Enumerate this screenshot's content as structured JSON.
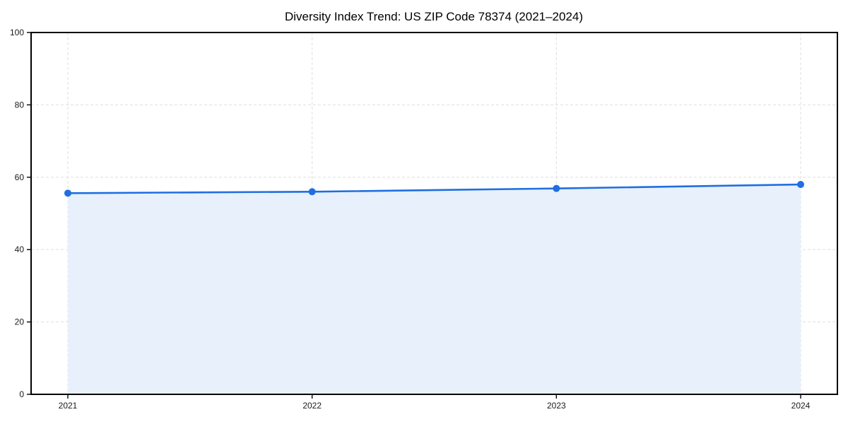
{
  "chart_data": {
    "type": "area",
    "title": "Diversity Index Trend: US ZIP Code 78374 (2021–2024)",
    "categories": [
      "2021",
      "2022",
      "2023",
      "2024"
    ],
    "x": [
      2021,
      2022,
      2023,
      2024
    ],
    "series": [
      {
        "name": "Diversity Index",
        "values": [
          55.6,
          56.0,
          56.9,
          58.0
        ]
      }
    ],
    "values": [
      55.6,
      56.0,
      56.9,
      58.0
    ],
    "xlabel": "",
    "ylabel": "",
    "ylim": [
      0,
      100
    ],
    "yticks": [
      0,
      20,
      40,
      60,
      80,
      100
    ],
    "grid": "dashed",
    "legend": "none",
    "colors": {
      "line": "#1f6fe0",
      "marker": "#1f6fe0",
      "fill": "#e8f0fc",
      "grid": "#e2e2e2",
      "axis": "#000000",
      "text": "#1a1a1a",
      "background": "#ffffff"
    }
  }
}
